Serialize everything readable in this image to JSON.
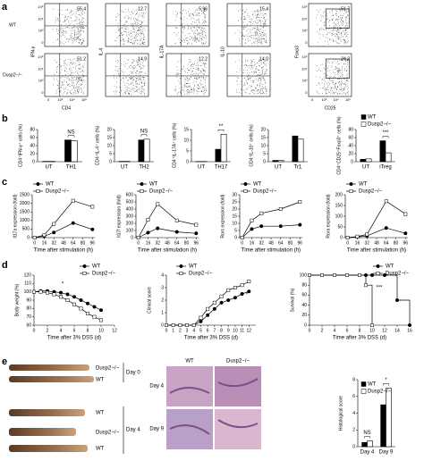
{
  "panel_labels": [
    "a",
    "b",
    "c",
    "d",
    "e"
  ],
  "flow": {
    "rows": [
      "WT",
      "Dusp2−/−"
    ],
    "ticks": [
      "10⁵",
      "10⁴",
      "10³",
      "0"
    ],
    "columns": [
      {
        "y_label": "IFN-γ",
        "x_label": "CD4",
        "values": [
          "55.4",
          "51.2"
        ]
      },
      {
        "y_label": "IL-4",
        "values": [
          "12.7",
          "14.9"
        ]
      },
      {
        "y_label": "IL-17A",
        "values": [
          "5.96",
          "12.2"
        ]
      },
      {
        "y_label": "IL-10",
        "values": [
          "15.4",
          "14.0"
        ]
      },
      {
        "y_label": "Foxp3",
        "x_label": "CD25",
        "values": [
          "51.7",
          "24.2"
        ]
      }
    ]
  },
  "photo": {
    "labels": [
      "Dusp2−/−",
      "WT",
      "WT",
      "Dusp2−/−",
      "WT"
    ],
    "days": [
      "Day 0",
      "Day 4"
    ]
  },
  "histology": {
    "columns": [
      "WT",
      "Dusp2−/−"
    ],
    "rows": [
      "Day 4",
      "Day 9"
    ]
  },
  "chart_data": [
    {
      "type": "bar",
      "y_label": "CD4⁺IFN-γ⁺ cells (%)",
      "categories": [
        "UT",
        "TH1"
      ],
      "ylim": [
        0,
        80
      ],
      "yticks": [
        0,
        20,
        40,
        60,
        80
      ],
      "annotations": [
        null,
        "NS"
      ],
      "legend": false,
      "series": [
        {
          "name": "WT",
          "color": "#000000",
          "values": [
            0.8,
            54
          ]
        },
        {
          "name": "Dusp2−/−",
          "color": "#ffffff",
          "values": [
            0.8,
            52
          ]
        }
      ]
    },
    {
      "type": "bar",
      "y_label": "CD4⁺IL-4⁺ cells (%)",
      "categories": [
        "UT",
        "TH2"
      ],
      "ylim": [
        0,
        20
      ],
      "yticks": [
        0,
        5,
        10,
        15,
        20
      ],
      "annotations": [
        null,
        "NS"
      ],
      "legend": false,
      "series": [
        {
          "name": "WT",
          "color": "#000000",
          "values": [
            0.2,
            13.5
          ]
        },
        {
          "name": "Dusp2−/−",
          "color": "#ffffff",
          "values": [
            0.2,
            14
          ]
        }
      ]
    },
    {
      "type": "bar",
      "y_label": "CD4⁺IL-17A⁺ cells (%)",
      "categories": [
        "UT",
        "TH17"
      ],
      "ylim": [
        0,
        15
      ],
      "yticks": [
        0,
        5,
        10,
        15
      ],
      "annotations": [
        null,
        "**"
      ],
      "legend": false,
      "series": [
        {
          "name": "WT",
          "color": "#000000",
          "values": [
            0.1,
            5.8
          ]
        },
        {
          "name": "Dusp2−/−",
          "color": "#ffffff",
          "values": [
            0.1,
            12.8
          ]
        }
      ]
    },
    {
      "type": "bar",
      "y_label": "CD4⁺IL-10⁺ cells (%)",
      "categories": [
        "UT",
        "Tr1"
      ],
      "ylim": [
        0,
        20
      ],
      "yticks": [
        0,
        5,
        10,
        15,
        20
      ],
      "legend": false,
      "series": [
        {
          "name": "WT",
          "color": "#000000",
          "values": [
            0.8,
            16
          ]
        },
        {
          "name": "Dusp2−/−",
          "color": "#ffffff",
          "values": [
            0.8,
            14
          ]
        }
      ]
    },
    {
      "type": "bar",
      "y_label": "CD4⁺CD25⁺Foxp3⁺ cells (%)",
      "categories": [
        "UT",
        "iTreg"
      ],
      "ylim": [
        0,
        80
      ],
      "yticks": [
        0,
        20,
        40,
        60,
        80
      ],
      "annotations": [
        null,
        "***"
      ],
      "legend": true,
      "series": [
        {
          "name": "WT",
          "color": "#000000",
          "values": [
            6,
            52
          ]
        },
        {
          "name": "Dusp2−/−",
          "color": "#ffffff",
          "values": [
            7,
            22
          ]
        }
      ]
    },
    {
      "type": "line",
      "y_label": "Il17a expression (fold)",
      "x_label": "Time after stimulation (h)",
      "x": [
        0,
        16,
        32,
        64,
        96
      ],
      "xlim": [
        -4,
        100
      ],
      "xticks": [
        0,
        16,
        32,
        48,
        64,
        80,
        96
      ],
      "ylim": [
        0,
        2500
      ],
      "yticks": [
        0,
        500,
        1000,
        1500,
        2000,
        2500
      ],
      "legend": true,
      "series": [
        {
          "name": "WT",
          "color": "#000000",
          "marker": "circle",
          "values": [
            0,
            80,
            300,
            850,
            480
          ]
        },
        {
          "name": "Dusp2−/−",
          "color": "#ffffff",
          "marker": "square",
          "values": [
            0,
            150,
            800,
            2150,
            1800
          ]
        }
      ]
    },
    {
      "type": "line",
      "y_label": "Il17f expression (fold)",
      "x_label": "Time after stimulation (h)",
      "x": [
        0,
        16,
        32,
        64,
        96
      ],
      "xlim": [
        -4,
        100
      ],
      "xticks": [
        0,
        16,
        32,
        48,
        64,
        80,
        96
      ],
      "ylim": [
        0,
        600
      ],
      "yticks": [
        0,
        100,
        200,
        300,
        400,
        500,
        600
      ],
      "legend": true,
      "series": [
        {
          "name": "WT",
          "color": "#000000",
          "marker": "circle",
          "values": [
            0,
            70,
            130,
            80,
            60
          ]
        },
        {
          "name": "Dusp2−/−",
          "color": "#ffffff",
          "marker": "square",
          "values": [
            0,
            250,
            470,
            240,
            180
          ]
        }
      ]
    },
    {
      "type": "line",
      "y_label": "Rorc expression (fold)",
      "x_label": "Time after stimulation (h)",
      "x": [
        0,
        16,
        32,
        64,
        96
      ],
      "xlim": [
        -4,
        100
      ],
      "xticks": [
        0,
        16,
        32,
        48,
        64,
        80,
        96
      ],
      "ylim": [
        0,
        30
      ],
      "yticks": [
        0,
        5,
        10,
        15,
        20,
        25,
        30
      ],
      "legend": true,
      "series": [
        {
          "name": "WT",
          "color": "#000000",
          "marker": "circle",
          "values": [
            0,
            6,
            8,
            8,
            9
          ]
        },
        {
          "name": "Dusp2−/−",
          "color": "#ffffff",
          "marker": "square",
          "values": [
            0,
            12,
            17,
            20,
            25
          ]
        }
      ]
    },
    {
      "type": "line",
      "y_label": "Rora expression (fold)",
      "x_label": "Time after stimulation (h)",
      "x": [
        0,
        16,
        32,
        64,
        96
      ],
      "xlim": [
        -4,
        100
      ],
      "xticks": [
        0,
        16,
        32,
        48,
        64,
        80,
        96
      ],
      "ylim": [
        0,
        200
      ],
      "yticks": [
        0,
        50,
        100,
        150,
        200
      ],
      "legend": true,
      "series": [
        {
          "name": "WT",
          "color": "#000000",
          "marker": "circle",
          "values": [
            0,
            3,
            8,
            45,
            20
          ]
        },
        {
          "name": "Dusp2−/−",
          "color": "#ffffff",
          "marker": "square",
          "values": [
            0,
            5,
            15,
            170,
            110
          ]
        }
      ]
    },
    {
      "type": "line",
      "y_label": "Body weight (%)",
      "x_label": "Time after 3% DSS (d)",
      "x": [
        0,
        1,
        2,
        3,
        4,
        5,
        6,
        7,
        8,
        9,
        10
      ],
      "xlim": [
        0,
        12
      ],
      "xticks": [
        0,
        2,
        4,
        6,
        8,
        10,
        12
      ],
      "ylim": [
        60,
        120
      ],
      "yticks": [
        60,
        70,
        80,
        90,
        100,
        110,
        120
      ],
      "annotations": [
        "*"
      ],
      "legend": true,
      "series": [
        {
          "name": "WT",
          "color": "#000000",
          "marker": "circle",
          "values": [
            100,
            101,
            101,
            100,
            99,
            97,
            94,
            90,
            86,
            82,
            78
          ]
        },
        {
          "name": "Dusp2−/−",
          "color": "#ffffff",
          "marker": "square",
          "values": [
            100,
            100,
            99,
            97,
            94,
            90,
            85,
            80,
            74,
            70,
            66
          ]
        }
      ]
    },
    {
      "type": "line",
      "y_label": "Clinical score",
      "x_label": "Time after 3% DSS (d)",
      "x": [
        0,
        1,
        2,
        3,
        4,
        5,
        6,
        7,
        8,
        9,
        10,
        11,
        12
      ],
      "xlim": [
        0,
        13
      ],
      "xticks": [
        0,
        1,
        2,
        3,
        4,
        5,
        6,
        7,
        8,
        9,
        10,
        11,
        12
      ],
      "ylim": [
        0,
        4
      ],
      "yticks": [
        0,
        1,
        2,
        3,
        4
      ],
      "annotations": [
        "*"
      ],
      "legend": true,
      "series": [
        {
          "name": "WT",
          "color": "#000000",
          "marker": "circle",
          "values": [
            0,
            0,
            0,
            0,
            0,
            0.3,
            0.8,
            1.3,
            1.8,
            2,
            2.2,
            2.5,
            2.7
          ]
        },
        {
          "name": "Dusp2−/−",
          "color": "#ffffff",
          "marker": "square",
          "values": [
            0,
            0,
            0,
            0,
            0,
            0.6,
            1.3,
            1.8,
            2.3,
            2.8,
            3,
            3.2,
            3.5
          ]
        }
      ]
    },
    {
      "type": "line",
      "step": true,
      "y_label": "Survival (%)",
      "x_label": "Time after 3% DSS (d)",
      "x": [
        0,
        2,
        4,
        6,
        8,
        9,
        10,
        12,
        14,
        16
      ],
      "xlim": [
        0,
        16
      ],
      "xticks": [
        0,
        2,
        4,
        6,
        8,
        10,
        12,
        14,
        16
      ],
      "ylim": [
        0,
        100
      ],
      "yticks": [
        0,
        20,
        40,
        60,
        80,
        100
      ],
      "annotations": [
        "***"
      ],
      "legend": true,
      "series": [
        {
          "name": "WT",
          "color": "#000000",
          "marker": "circle",
          "values": [
            100,
            100,
            100,
            100,
            100,
            100,
            100,
            100,
            50,
            0
          ]
        },
        {
          "name": "Dusp2−/−",
          "color": "#ffffff",
          "marker": "square",
          "values": [
            100,
            100,
            100,
            100,
            100,
            80,
            0,
            null,
            null,
            null
          ]
        }
      ]
    },
    {
      "type": "bar",
      "y_label": "Histological score",
      "categories": [
        "Day 4",
        "Day 9"
      ],
      "ylim": [
        0,
        8
      ],
      "yticks": [
        0,
        2,
        4,
        6,
        8
      ],
      "annotations": [
        "NS",
        "*"
      ],
      "legend": true,
      "series": [
        {
          "name": "WT",
          "color": "#000000",
          "values": [
            0.5,
            5
          ]
        },
        {
          "name": "Dusp2−/−",
          "color": "#ffffff",
          "values": [
            0.7,
            7
          ]
        }
      ]
    }
  ]
}
